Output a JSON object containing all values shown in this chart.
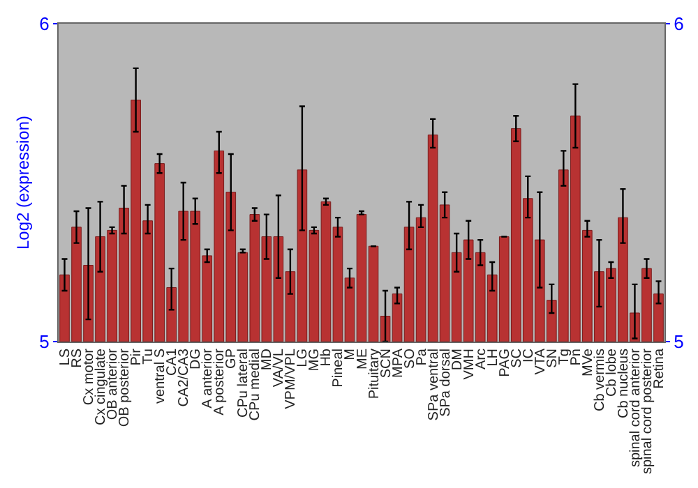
{
  "chart_data": {
    "type": "bar",
    "ylabel": "Log2 (expression)",
    "categories": [
      "LS",
      "RS",
      "Cx motor",
      "Cx cingulate",
      "OB anterior",
      "OB posterior",
      "Pir",
      "Tu",
      "ventral S",
      "CA1",
      "CA2/CA3",
      "DG",
      "A anterior",
      "A posterior",
      "GP",
      "CPu lateral",
      "CPu medial",
      "MD",
      "VA/VL",
      "VPM/VPL",
      "LG",
      "MG",
      "Hb",
      "Pineal",
      "M",
      "ME",
      "Pituitary",
      "SCN",
      "MPA",
      "SO",
      "Pa",
      "SPa ventral",
      "SPa dorsal",
      "DM",
      "VMH",
      "Arc",
      "LH",
      "PAG",
      "SC",
      "IC",
      "VTA",
      "SN",
      "Tg",
      "Pn",
      "MVe",
      "Cb vermis",
      "Cb lobe",
      "Cb nucleus",
      "spinal cord anterior",
      "spinal cord posterior",
      "Retina"
    ],
    "values": [
      5.21,
      5.36,
      5.24,
      5.33,
      5.35,
      5.42,
      5.76,
      5.38,
      5.56,
      5.17,
      5.41,
      5.41,
      5.27,
      5.6,
      5.47,
      5.28,
      5.4,
      5.33,
      5.33,
      5.22,
      5.54,
      5.35,
      5.44,
      5.36,
      5.2,
      5.4,
      5.3,
      5.08,
      5.15,
      5.36,
      5.39,
      5.65,
      5.43,
      5.28,
      5.32,
      5.28,
      5.21,
      5.33,
      5.67,
      5.45,
      5.32,
      5.13,
      5.54,
      5.71,
      5.35,
      5.22,
      5.23,
      5.39,
      5.09,
      5.23,
      5.15
    ],
    "errors": [
      [
        5.16,
        5.26
      ],
      [
        5.31,
        5.41
      ],
      [
        5.07,
        5.42
      ],
      [
        5.22,
        5.44
      ],
      [
        5.34,
        5.36
      ],
      [
        5.34,
        5.49
      ],
      [
        5.66,
        5.86
      ],
      [
        5.34,
        5.43
      ],
      [
        5.53,
        5.59
      ],
      [
        5.1,
        5.23
      ],
      [
        5.32,
        5.5
      ],
      [
        5.37,
        5.45
      ],
      [
        5.25,
        5.29
      ],
      [
        5.53,
        5.66
      ],
      [
        5.35,
        5.59
      ],
      [
        5.28,
        5.29
      ],
      [
        5.38,
        5.42
      ],
      [
        5.26,
        5.4
      ],
      [
        5.2,
        5.46
      ],
      [
        5.15,
        5.29
      ],
      [
        5.35,
        5.74
      ],
      [
        5.34,
        5.36
      ],
      [
        5.43,
        5.45
      ],
      [
        5.33,
        5.39
      ],
      [
        5.17,
        5.23
      ],
      [
        5.4,
        5.41
      ],
      [
        5.3,
        5.3
      ],
      [
        5.0,
        5.16
      ],
      [
        5.12,
        5.17
      ],
      [
        5.29,
        5.44
      ],
      [
        5.36,
        5.43
      ],
      [
        5.61,
        5.7
      ],
      [
        5.39,
        5.47
      ],
      [
        5.22,
        5.34
      ],
      [
        5.26,
        5.38
      ],
      [
        5.24,
        5.32
      ],
      [
        5.16,
        5.25
      ],
      [
        5.33,
        5.33
      ],
      [
        5.63,
        5.71
      ],
      [
        5.39,
        5.52
      ],
      [
        5.17,
        5.47
      ],
      [
        5.09,
        5.18
      ],
      [
        5.49,
        5.6
      ],
      [
        5.61,
        5.81
      ],
      [
        5.33,
        5.38
      ],
      [
        5.11,
        5.32
      ],
      [
        5.2,
        5.25
      ],
      [
        5.31,
        5.48
      ],
      [
        5.01,
        5.18
      ],
      [
        5.2,
        5.26
      ],
      [
        5.12,
        5.19
      ]
    ],
    "color": "#b83232",
    "ylim": [
      5,
      6
    ],
    "yticks": [
      5,
      6
    ],
    "y2lim": [
      5,
      6
    ],
    "y2ticks": [
      5,
      6
    ],
    "grid": false
  }
}
